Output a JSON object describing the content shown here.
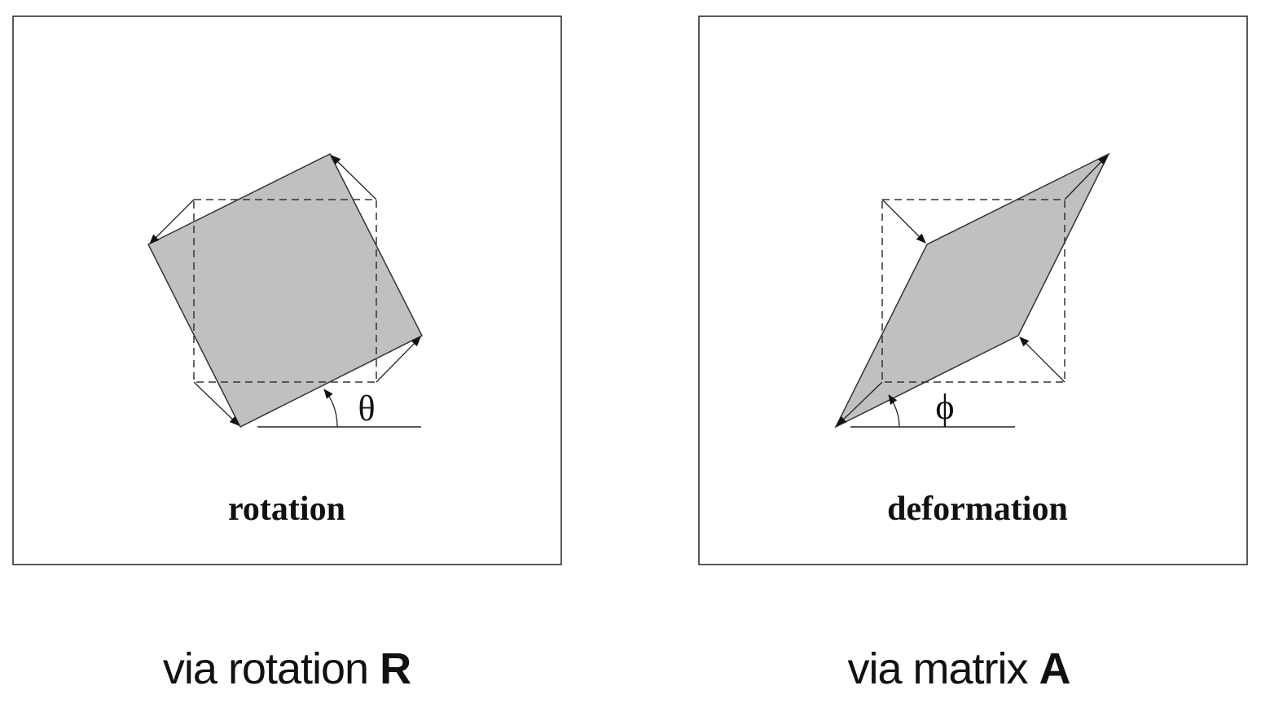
{
  "panels": [
    {
      "figure_label": "rotation",
      "angle_symbol": "θ",
      "caption_prefix": "via rotation",
      "caption_symbol": "R"
    },
    {
      "figure_label": "deformation",
      "angle_symbol": "ϕ",
      "caption_prefix": "via matrix",
      "caption_symbol": "A"
    }
  ],
  "colors": {
    "shape_fill": "#c0c0c0",
    "outline": "#333333",
    "frame": "#222222"
  }
}
